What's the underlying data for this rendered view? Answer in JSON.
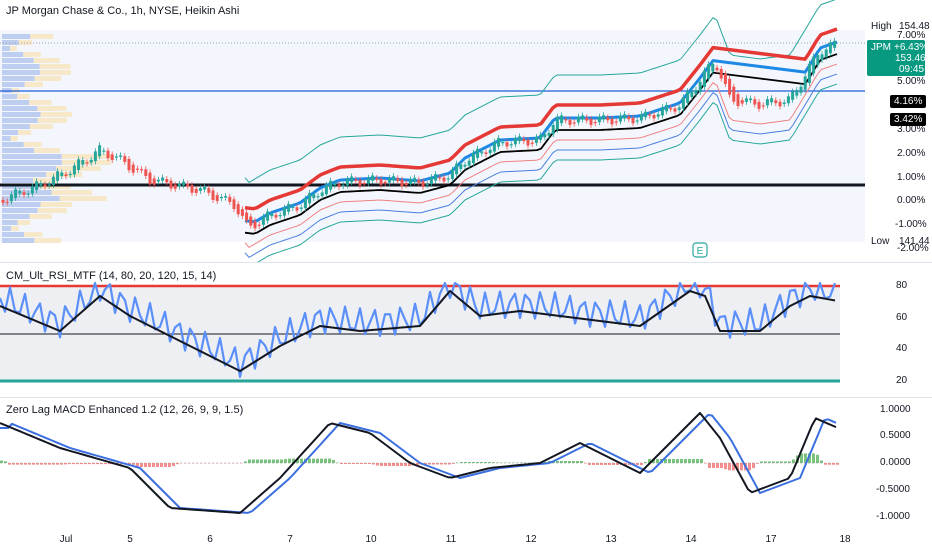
{
  "header": {
    "title": "JP Morgan Chase & Co., 1h, NYSE, Heikin Ashi"
  },
  "price_axis": {
    "labels": [
      "7.00%",
      "5.00%",
      "3.00%",
      "2.00%",
      "1.00%",
      "0.00%",
      "-1.00%",
      "-2.00%"
    ],
    "high_label": "High",
    "high_value": "154.48",
    "low_label": "Low",
    "low_value": "141.44",
    "symbol": "JPM",
    "symbol_change": "+6.43%",
    "symbol_price": "153.46",
    "countdown": "09:45",
    "tag_1": "4.16%",
    "tag_2": "3.42%"
  },
  "earnings_marker": "E",
  "rsi": {
    "title": "CM_Ult_RSI_MTF (14, 80, 20, 120, 15, 14)",
    "axis_labels": [
      "80",
      "60",
      "40",
      "20"
    ]
  },
  "macd": {
    "title": "Zero Lag MACD Enhanced 1.2 (12, 26, 9, 9, 1.5)",
    "axis_labels": [
      "1.0000",
      "0.5000",
      "0.0000",
      "-0.5000",
      "-1.0000"
    ]
  },
  "time_axis": {
    "labels": [
      "Jul",
      "5",
      "6",
      "7",
      "10",
      "11",
      "12",
      "13",
      "14",
      "17",
      "18"
    ]
  },
  "colors": {
    "bull": "#26a69a",
    "bear": "#ef5350",
    "upper_band": "#e53935",
    "lower_band": "#1e88e5",
    "trend": "#000000",
    "rsi_line": "#5b8ff9",
    "rsi_upper": "#e53935",
    "rsi_lower": "#26a69a",
    "badge": "#089981"
  }
}
